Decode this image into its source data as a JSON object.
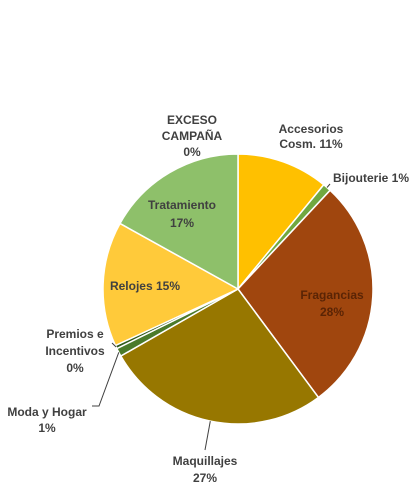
{
  "chart_data": {
    "type": "pie",
    "title": "",
    "start_angle_deg": 0,
    "direction": "clockwise",
    "slice_border": "#ffffff",
    "slices": [
      {
        "key": "accesorios",
        "label_lines": [
          "Accesorios",
          "Cosm. 11%"
        ],
        "value": 11,
        "percent_label": "11%",
        "color": "#FFC000"
      },
      {
        "key": "bijouterie",
        "label_lines": [
          "Bijouterie 1%"
        ],
        "value": 1,
        "percent_label": "1%",
        "color": "#70A840"
      },
      {
        "key": "fragancias",
        "label_lines": [
          "Fragancias",
          "28%"
        ],
        "value": 28,
        "percent_label": "28%",
        "color": "#A0460E"
      },
      {
        "key": "maquillajes",
        "label_lines": [
          "Maquillajes",
          "27%"
        ],
        "value": 27,
        "percent_label": "27%",
        "color": "#977700"
      },
      {
        "key": "moda-y-hogar",
        "label_lines": [
          "Moda y Hogar",
          "1%"
        ],
        "value": 1,
        "percent_label": "1%",
        "color": "#4A7A2A"
      },
      {
        "key": "premios-e-incentivos",
        "label_lines": [
          "Premios e",
          "Incentivos",
          "0%"
        ],
        "value": 0.4,
        "percent_label": "0%",
        "color": "#2E5A1A"
      },
      {
        "key": "relojes",
        "label_lines": [
          "Relojes 15%"
        ],
        "value": 15,
        "percent_label": "15%",
        "color": "#FFCA3A"
      },
      {
        "key": "tratamiento",
        "label_lines": [
          "Tratamiento",
          "17%"
        ],
        "value": 17,
        "percent_label": "17%",
        "color": "#8EC06A"
      },
      {
        "key": "exceso-campana",
        "label_lines": [
          "EXCESO",
          "CAMPAÑA",
          "0%"
        ],
        "value": 0,
        "percent_label": "0%",
        "color": "#C9D98A"
      }
    ]
  }
}
